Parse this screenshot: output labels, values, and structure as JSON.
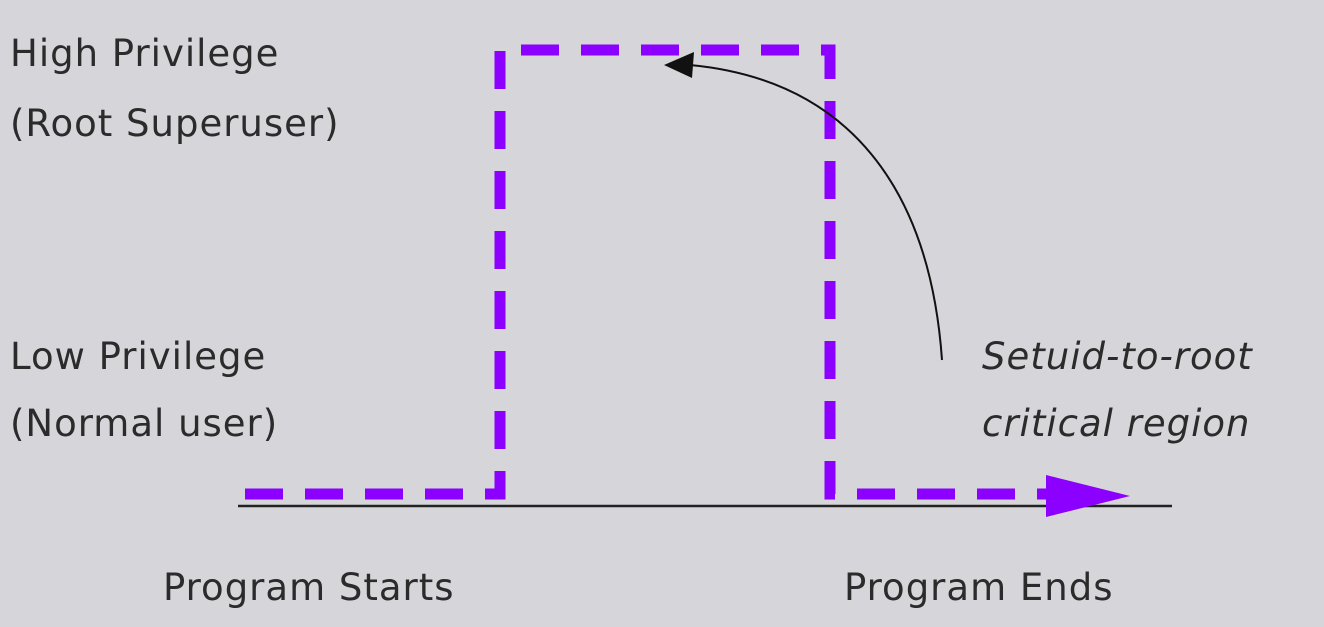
{
  "labels": {
    "high_line1": "High Privilege",
    "high_line2": "(Root Superuser)",
    "low_line1": "Low Privilege",
    "low_line2": "(Normal user)",
    "region_line1": "Setuid-to-root",
    "region_line2": "critical region",
    "start": "Program Starts",
    "end": "Program Ends"
  },
  "colors": {
    "background": "#d6d5d9",
    "privilege_path": "#8b00ff",
    "axis": "#222222",
    "text": "#2b2b2b"
  }
}
